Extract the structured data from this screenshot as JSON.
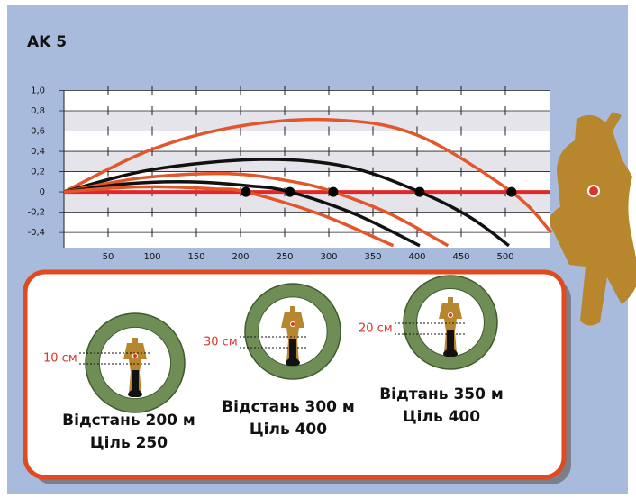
{
  "chart_data": {
    "type": "line",
    "title": "AK 5",
    "xlim": [
      0,
      550
    ],
    "ylim": [
      -0.55,
      1.0
    ],
    "xticks": [
      50,
      100,
      150,
      200,
      250,
      300,
      350,
      400,
      450,
      500
    ],
    "yticks": [
      {
        "value": 1.0,
        "label": "1,0"
      },
      {
        "value": 0.8,
        "label": "0,8"
      },
      {
        "value": 0.6,
        "label": "0,6"
      },
      {
        "value": 0.4,
        "label": "0,4"
      },
      {
        "value": 0.2,
        "label": "0,2"
      },
      0,
      {
        "value": -0.2,
        "label": "-0,2"
      },
      {
        "value": -0.4,
        "label": "-0,4"
      }
    ],
    "series": [
      {
        "color": "#e2562b",
        "x": [
          0,
          100,
          200,
          305,
          400,
          507,
          552
        ],
        "values": [
          0,
          0.42,
          0.65,
          0.71,
          0.56,
          0,
          -0.4
        ]
      },
      {
        "color": "#111111",
        "x": [
          0,
          100,
          223,
          320,
          403,
          460,
          504
        ],
        "values": [
          0,
          0.22,
          0.32,
          0.25,
          0,
          -0.25,
          -0.53
        ]
      },
      {
        "color": "#e2562b",
        "x": [
          0,
          90,
          188,
          260,
          305,
          370,
          435
        ],
        "values": [
          0,
          0.14,
          0.18,
          0.1,
          0,
          -0.22,
          -0.53
        ]
      },
      {
        "color": "#111111",
        "x": [
          0,
          70,
          142,
          210,
          256,
          330,
          403
        ],
        "values": [
          0,
          0.08,
          0.1,
          0.06,
          0,
          -0.22,
          -0.53
        ]
      },
      {
        "color": "#e2562b",
        "x": [
          0,
          60,
          111,
          170,
          206,
          290,
          373
        ],
        "values": [
          0,
          0.04,
          0.05,
          0.03,
          0,
          -0.22,
          -0.53
        ]
      }
    ],
    "points": {
      "color": "#000000",
      "x": [
        206,
        256,
        305,
        403,
        507
      ],
      "values": [
        0,
        0,
        0,
        0,
        0
      ]
    }
  },
  "scopes": [
    {
      "offset": "10 см",
      "caption": [
        "Відстань 200 м",
        "Ціль 250"
      ]
    },
    {
      "offset": "30 см",
      "caption": [
        "Відстань 300 м",
        "Ціль 400"
      ]
    },
    {
      "offset": "20 см",
      "caption": [
        "Відтань 350 м",
        "Ціль 400"
      ]
    }
  ]
}
